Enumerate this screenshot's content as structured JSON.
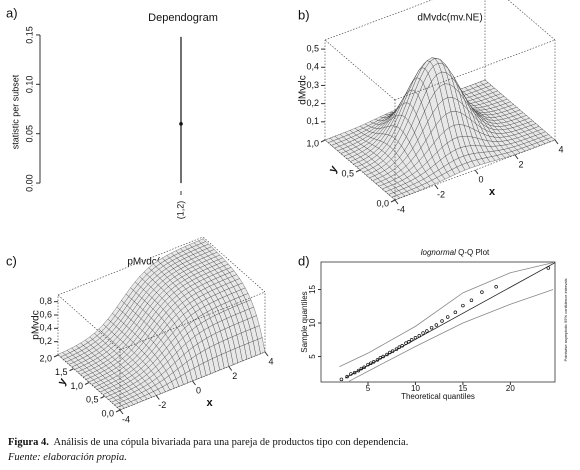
{
  "chart_data": [
    {
      "type": "dependogram",
      "panel_label": "a)",
      "title": "Dependogram",
      "y_label": "statistic per subset",
      "categories": [
        "(1,2)"
      ],
      "values": [
        0.06
      ],
      "critical_values": [
        0.148
      ],
      "ylim": [
        -0.005,
        0.155
      ],
      "yticks": [
        {
          "value": 0,
          "label": "0.00"
        },
        {
          "value": 0.05,
          "label": "0.05"
        },
        {
          "value": 0.1,
          "label": "0.10"
        },
        {
          "value": 0.15,
          "label": "0.15"
        }
      ]
    },
    {
      "type": "surface3d",
      "panel_label": "b)",
      "title": "dMvdc(mv.NE)",
      "x_label": "x",
      "y_label": "y",
      "z_label": "dMvdc",
      "xlim": [
        -4,
        4
      ],
      "ylim": [
        0,
        1
      ],
      "zlim": [
        0,
        0.55
      ],
      "xticks": [
        -4,
        -2,
        0,
        2,
        4
      ],
      "yticks": [
        {
          "value": 0,
          "label": "0,0"
        },
        {
          "value": 0.5,
          "label": "0,5"
        },
        {
          "value": 1,
          "label": "1,0"
        }
      ],
      "zticks": [
        {
          "value": 0.1,
          "label": "0,1"
        },
        {
          "value": 0.2,
          "label": "0,2"
        },
        {
          "value": 0.3,
          "label": "0,3"
        },
        {
          "value": 0.4,
          "label": "0,4"
        },
        {
          "value": 0.5,
          "label": "0,5"
        }
      ]
    },
    {
      "type": "surface3d",
      "panel_label": "c)",
      "title": "pMvdc(mv.NE)",
      "x_label": "x",
      "y_label": "y",
      "z_label": "pMvdc",
      "xlim": [
        -4,
        4
      ],
      "ylim": [
        0,
        2
      ],
      "zlim": [
        0,
        0.9
      ],
      "xticks": [
        -4,
        -2,
        0,
        2,
        4
      ],
      "yticks": [
        {
          "value": 0,
          "label": "0,0"
        },
        {
          "value": 0.5,
          "label": "0,5"
        },
        {
          "value": 1,
          "label": "1,0"
        },
        {
          "value": 1.5,
          "label": "1,5"
        },
        {
          "value": 2,
          "label": "2,0"
        }
      ],
      "zticks": [
        {
          "value": 0.2,
          "label": "0,2"
        },
        {
          "value": 0.4,
          "label": "0,4"
        },
        {
          "value": 0.6,
          "label": "0,6"
        },
        {
          "value": 0.8,
          "label": "0,8"
        }
      ]
    },
    {
      "type": "qq",
      "panel_label": "d)",
      "title_emphasis": "lognormal",
      "title": "Q-Q Plot",
      "x_label": "Theoretical quantiles",
      "y_label": "Sample quantiles",
      "side_note": "Pointwise asymptotic 95% confidence intervals",
      "xlim": [
        0.05,
        24.7
      ],
      "ylim": [
        1.2,
        19.1
      ],
      "xticks": [
        5,
        10,
        15,
        20
      ],
      "yticks": [
        5,
        10,
        15
      ],
      "x": [
        2.2,
        2.8,
        3.2,
        3.6,
        4,
        4.3,
        4.6,
        5,
        5.3,
        5.6,
        6,
        6.3,
        6.6,
        7,
        7.3,
        7.6,
        8,
        8.3,
        8.6,
        9,
        9.3,
        9.6,
        10,
        10.4,
        10.8,
        11.2,
        11.7,
        12.2,
        12.8,
        13.4,
        14.2,
        15,
        15.9,
        17,
        18.5,
        24
      ],
      "y": [
        1.6,
        2.0,
        2.4,
        2.6,
        2.9,
        3.2,
        3.4,
        3.8,
        4.0,
        4.2,
        4.5,
        4.8,
        5.0,
        5.3,
        5.6,
        5.8,
        6.1,
        6.4,
        6.6,
        7.0,
        7.2,
        7.5,
        7.8,
        8.1,
        8.5,
        8.8,
        9.3,
        9.7,
        10.3,
        10.9,
        11.6,
        12.6,
        13.4,
        14.6,
        15.4,
        18.2
      ],
      "reference_line": {
        "x": [
          2.6,
          24.7
        ],
        "y": [
          1.8,
          19.0
        ]
      },
      "upper_band": {
        "x": [
          2,
          5,
          10,
          15,
          20,
          24.5
        ],
        "y": [
          3.5,
          5.5,
          9.5,
          14.5,
          17.5,
          19
        ]
      },
      "lower_band": {
        "x": [
          3,
          5,
          10,
          15,
          20,
          24.5
        ],
        "y": [
          1.3,
          2.8,
          6.5,
          10,
          12.8,
          15
        ]
      }
    }
  ],
  "caption": {
    "label": "Figura 4.",
    "text": "Análisis de una cópula bivariada para una pareja de productos tipo con dependencia.",
    "source": "Fuente: elaboración propia."
  }
}
